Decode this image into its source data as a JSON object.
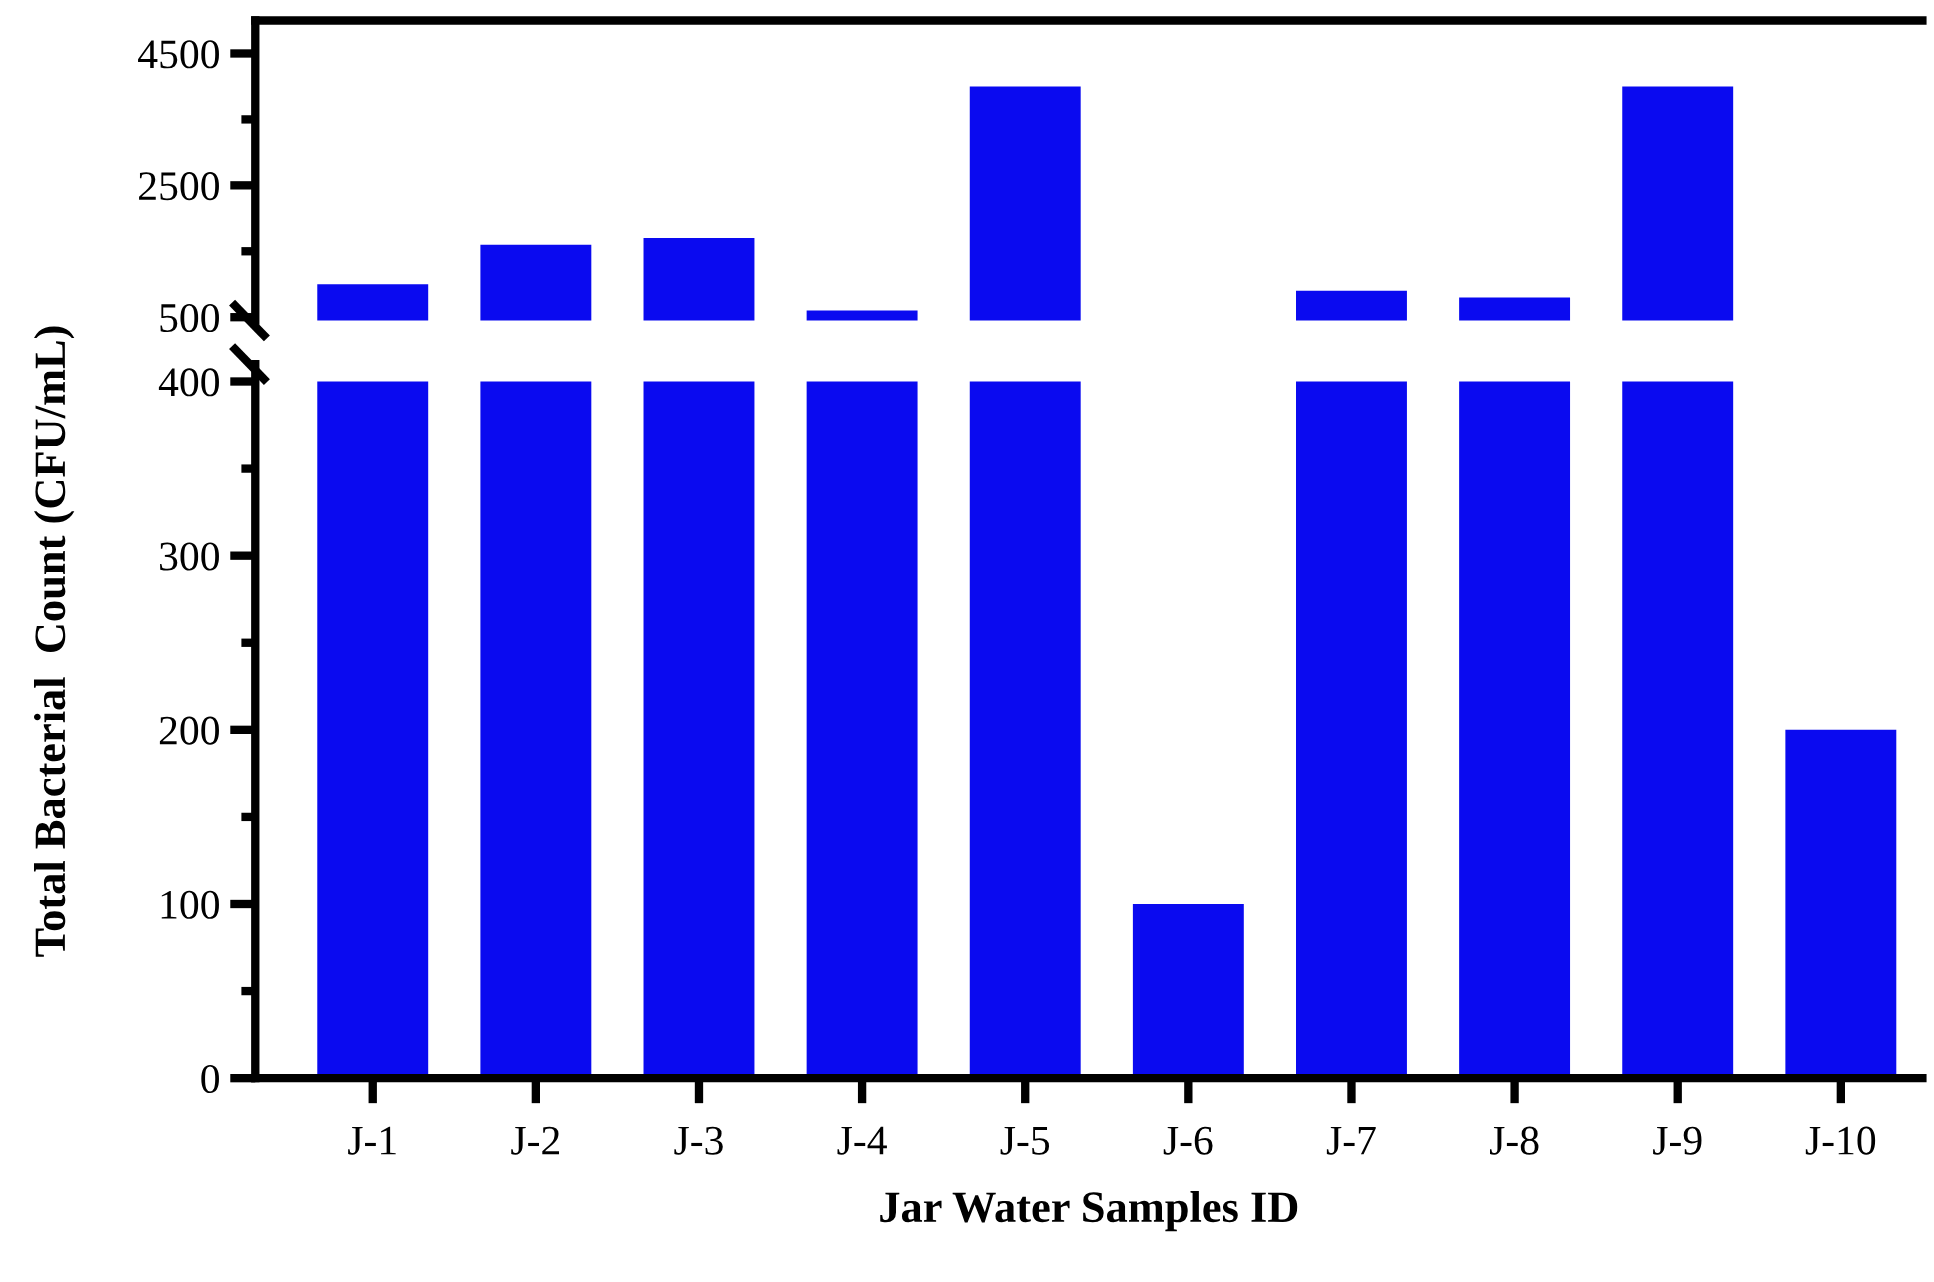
{
  "chart_data": [
    {
      "type": "bar",
      "categories": [
        null,
        null,
        null,
        null,
        null,
        null,
        null,
        null,
        null,
        null
      ],
      "values": [
        1000,
        1600,
        1700,
        600,
        4000,
        null,
        900,
        800,
        4000,
        null
      ],
      "color": "#0a0af0",
      "ylim": [
        450,
        5000
      ],
      "yticks": [
        500,
        {
          "value": 1500,
          "label": null
        },
        2500,
        {
          "value": 3500,
          "label": null
        },
        4500
      ],
      "tick_labels": "y",
      "grid": false
    },
    {
      "type": "bar",
      "categories": [
        "J-1",
        "J-2",
        "J-3",
        "J-4",
        "J-5",
        "J-6",
        "J-7",
        "J-8",
        "J-9",
        "J-10"
      ],
      "values": [
        400,
        400,
        400,
        400,
        400,
        100,
        400,
        400,
        400,
        200
      ],
      "color": "#0a0af0",
      "ylim": [
        0,
        410
      ],
      "yticks": [
        0,
        {
          "value": 50,
          "label": null
        },
        100,
        {
          "value": 150,
          "label": null
        },
        200,
        {
          "value": 250,
          "label": null
        },
        300,
        {
          "value": 350,
          "label": null
        },
        400
      ],
      "xlabel": "Jar Water Samples ID",
      "ylabel": "Total Bacterial  Count (CFU/mL)",
      "grid": false
    }
  ]
}
